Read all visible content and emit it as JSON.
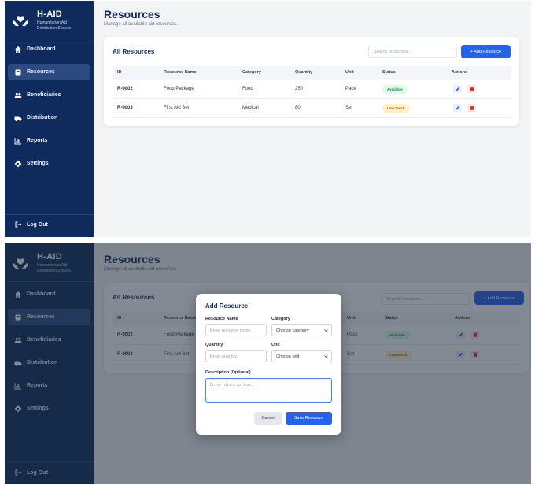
{
  "brand": {
    "name": "H-AID",
    "subtitle": "Humanitarian Aid Distribution System",
    "logo_icon": "hands-heart-icon"
  },
  "sidebar": {
    "items": [
      {
        "label": "Dashboard",
        "icon": "home-icon"
      },
      {
        "label": "Resources",
        "icon": "box-icon",
        "active": true
      },
      {
        "label": "Beneficiaries",
        "icon": "users-icon"
      },
      {
        "label": "Distribution",
        "icon": "truck-icon"
      },
      {
        "label": "Reports",
        "icon": "chart-icon"
      },
      {
        "label": "Settings",
        "icon": "gear-icon"
      }
    ],
    "logout_label": "Log Out"
  },
  "page": {
    "title": "Resources",
    "subtitle": "Manage all available aid resources."
  },
  "card": {
    "title": "All Resources",
    "search_placeholder": "Search resources...",
    "add_button_label": "+ Add Resource",
    "columns": [
      "ID",
      "Resource Name",
      "Category",
      "Quantity",
      "Unit",
      "Status",
      "Actions"
    ],
    "rows": [
      {
        "id": "R-0002",
        "name": "Food Package",
        "category": "Food",
        "quantity": "250",
        "unit": "Pack",
        "status": "Available"
      },
      {
        "id": "R-0003",
        "name": "First Aid Set",
        "category": "Medical",
        "quantity": "80",
        "unit": "Set",
        "status": "Low Stock"
      }
    ]
  },
  "modal": {
    "title": "Add Resource",
    "resource_name_label": "Resource Name",
    "resource_name_placeholder": "Enter resource name",
    "category_label": "Category",
    "category_value": "Choose category",
    "quantity_label": "Quantity",
    "quantity_placeholder": "Enter quantity",
    "unit_label": "Unit",
    "unit_value": "Choose unit",
    "description_label": "Description (Optional)",
    "description_placeholder": "Enter description...",
    "cancel_label": "Cancel",
    "save_label": "Save Resource"
  },
  "colors": {
    "sidebar": "#0f2a5c",
    "accent": "#2563eb",
    "available": "#15803d",
    "low_stock": "#b45309",
    "danger": "#dc2626"
  }
}
